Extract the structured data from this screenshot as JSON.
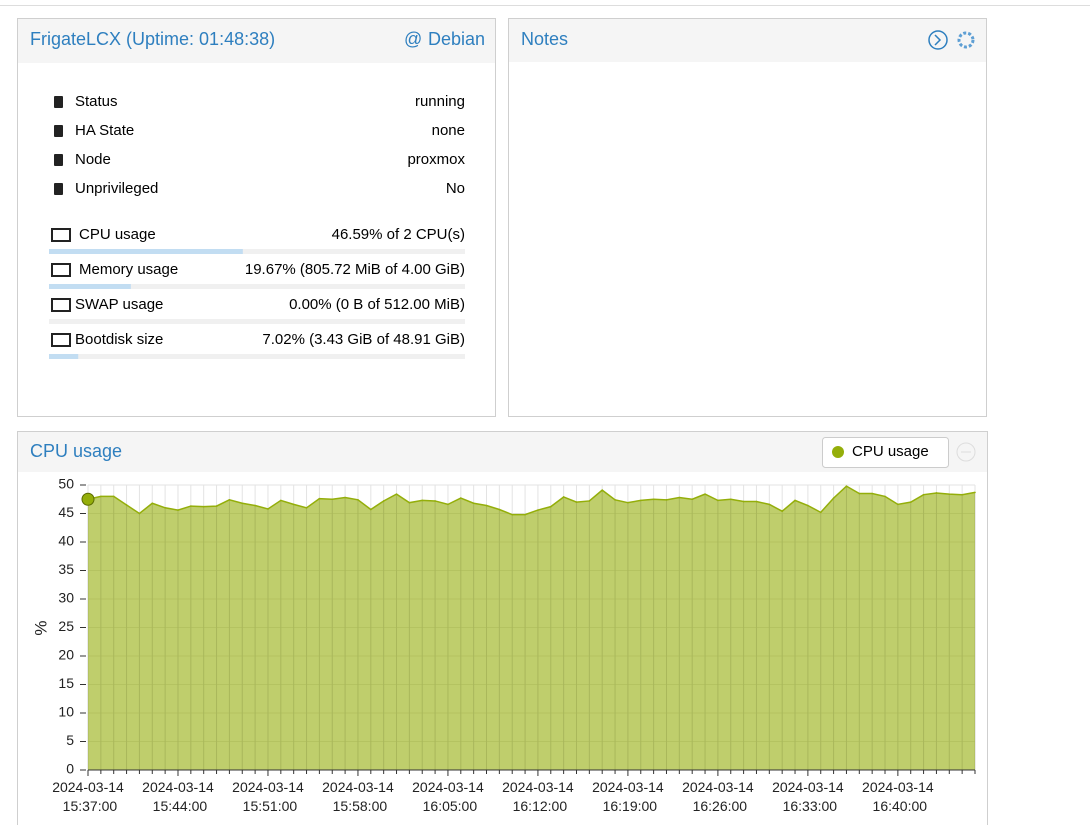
{
  "status_panel": {
    "title": "FrigateLCX (Uptime: 01:48:38)",
    "os": "Debian",
    "rows": [
      {
        "label": "Status",
        "value": "running"
      },
      {
        "label": "HA State",
        "value": "none"
      },
      {
        "label": "Node",
        "value": "proxmox"
      },
      {
        "label": "Unprivileged",
        "value": "No"
      }
    ],
    "usage": [
      {
        "label": "CPU usage",
        "value": "46.59% of 2 CPU(s)",
        "percent": 46.59
      },
      {
        "label": "Memory usage",
        "value": "19.67% (805.72 MiB of 4.00 GiB)",
        "percent": 19.67
      },
      {
        "label": "SWAP usage",
        "value": "0.00% (0 B of 512.00 MiB)",
        "percent": 0
      },
      {
        "label": "Bootdisk size",
        "value": "7.02% (3.43 GiB of 48.91 GiB)",
        "percent": 7.02
      }
    ]
  },
  "notes_panel": {
    "title": "Notes"
  },
  "chart_panel": {
    "title": "CPU usage"
  },
  "chart_data": {
    "type": "area",
    "y_label": "%",
    "categories": [
      "2024-03-14 15:37:00",
      null,
      null,
      null,
      null,
      null,
      null,
      "2024-03-14 15:44:00",
      null,
      null,
      null,
      null,
      null,
      null,
      "2024-03-14 15:51:00",
      null,
      null,
      null,
      null,
      null,
      null,
      "2024-03-14 15:58:00",
      null,
      null,
      null,
      null,
      null,
      null,
      "2024-03-14 16:05:00",
      null,
      null,
      null,
      null,
      null,
      null,
      "2024-03-14 16:12:00",
      null,
      null,
      null,
      null,
      null,
      null,
      "2024-03-14 16:19:00",
      null,
      null,
      null,
      null,
      null,
      null,
      "2024-03-14 16:26:00",
      null,
      null,
      null,
      null,
      null,
      null,
      "2024-03-14 16:33:00",
      null,
      null,
      null,
      null,
      null,
      null,
      "2024-03-14 16:40:00",
      null,
      null,
      null,
      null,
      null,
      null
    ],
    "series": [
      {
        "name": "CPU usage",
        "color": "#94ae0a",
        "values": [
          47.5,
          48,
          48,
          46.5,
          45,
          46.8,
          46,
          45.6,
          46.3,
          46.2,
          46.3,
          47.4,
          46.8,
          46.4,
          45.8,
          47.3,
          46.6,
          46,
          47.6,
          47.5,
          47.8,
          47.4,
          45.7,
          47.2,
          48.4,
          46.9,
          47.3,
          47.2,
          46.6,
          47.7,
          46.8,
          46.4,
          45.7,
          44.8,
          44.8,
          45.6,
          46.2,
          47.9,
          47,
          47.2,
          49.1,
          47.4,
          46.9,
          47.3,
          47.5,
          47.4,
          47.8,
          47.5,
          48.4,
          47.3,
          47.5,
          47.1,
          47.1,
          46.6,
          45.4,
          47.3,
          46.4,
          45.2,
          47.7,
          49.8,
          48.5,
          48.5,
          48,
          46.6,
          47,
          48.3,
          48.6,
          48.4,
          48.3,
          48.7
        ]
      }
    ],
    "ylim": [
      0,
      50
    ],
    "yticks": [
      0,
      5,
      10,
      15,
      20,
      25,
      30,
      35,
      40,
      45,
      50
    ],
    "grid": true
  }
}
